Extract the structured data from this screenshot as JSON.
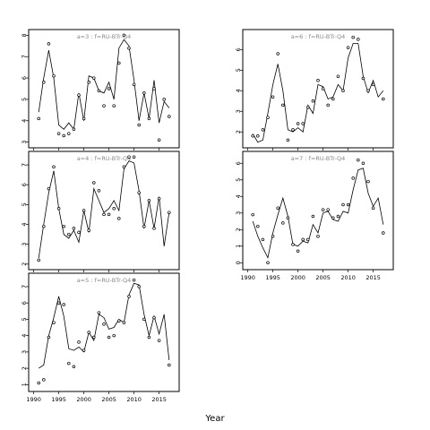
{
  "chart_data": {
    "type": "line",
    "xlabel": "Year",
    "xlim": [
      1989,
      2019
    ],
    "xticks": [
      1990,
      1995,
      2000,
      2005,
      2010,
      2015
    ],
    "panels": [
      {
        "title": "a=3 : f=RU-BTr-Q4",
        "ylim": [
          2.9,
          8.1
        ],
        "yticks": [
          3,
          4,
          5,
          6,
          7,
          8
        ],
        "fitted": {
          "x": [
            1991,
            1992,
            1993,
            1994,
            1995,
            1996,
            1997,
            1998,
            1999,
            2000,
            2001,
            2002,
            2003,
            2004,
            2005,
            2006,
            2007,
            2008,
            2009,
            2010,
            2011,
            2012,
            2013,
            2014,
            2015,
            2016,
            2017
          ],
          "y": [
            4.4,
            6.0,
            7.3,
            6.0,
            3.8,
            3.6,
            3.9,
            3.6,
            5.3,
            4.0,
            6.1,
            6.0,
            5.4,
            5.3,
            5.8,
            5.0,
            7.4,
            7.8,
            7.5,
            5.9,
            4.0,
            5.3,
            4.1,
            5.9,
            3.9,
            4.9,
            4.6
          ]
        },
        "observed": {
          "x": [
            1991,
            1992,
            1993,
            1994,
            1995,
            1996,
            1997,
            1998,
            1999,
            2000,
            2001,
            2002,
            2003,
            2004,
            2005,
            2006,
            2007,
            2008,
            2009,
            2010,
            2011,
            2012,
            2013,
            2014,
            2015,
            2016,
            2017
          ],
          "y": [
            4.1,
            5.8,
            7.6,
            6.1,
            3.4,
            3.3,
            3.4,
            3.6,
            5.2,
            4.1,
            5.8,
            6.0,
            5.4,
            4.7,
            5.5,
            4.7,
            6.7,
            8.0,
            7.4,
            5.7,
            3.8,
            5.3,
            4.1,
            5.5,
            3.1,
            5.0,
            4.2
          ]
        }
      },
      {
        "title": "a=4 : f=RU-BTr-Q4",
        "ylim": [
          1.9,
          7.5
        ],
        "yticks": [
          2,
          3,
          4,
          5,
          6,
          7
        ],
        "fitted": {
          "x": [
            1991,
            1992,
            1993,
            1994,
            1995,
            1996,
            1997,
            1998,
            1999,
            2000,
            2001,
            2002,
            2003,
            2004,
            2005,
            2006,
            2007,
            2008,
            2009,
            2010,
            2011,
            2012,
            2013,
            2014,
            2015,
            2016,
            2017
          ],
          "y": [
            2.3,
            4.0,
            5.6,
            6.7,
            4.8,
            3.5,
            3.3,
            3.7,
            3.1,
            4.7,
            3.6,
            5.8,
            5.2,
            4.6,
            4.8,
            5.2,
            4.7,
            6.8,
            7.2,
            7.1,
            5.7,
            3.8,
            5.2,
            3.8,
            5.4,
            2.9,
            4.6
          ]
        },
        "observed": {
          "x": [
            1991,
            1992,
            1993,
            1994,
            1995,
            1996,
            1997,
            1998,
            1999,
            2000,
            2001,
            2002,
            2003,
            2004,
            2005,
            2006,
            2007,
            2008,
            2009,
            2010,
            2011,
            2012,
            2013,
            2014,
            2015,
            2016,
            2017
          ],
          "y": [
            2.2,
            3.9,
            5.8,
            6.9,
            4.8,
            3.9,
            3.5,
            3.8,
            3.6,
            4.7,
            3.7,
            6.1,
            5.7,
            4.5,
            4.5,
            4.8,
            4.3,
            6.9,
            7.4,
            7.4,
            5.6,
            3.9,
            5.2,
            3.8,
            5.3,
            null,
            4.6
          ]
        }
      },
      {
        "title": "a=5 : f=RU-BTr-Q4",
        "ylim": [
          0.8,
          7.6
        ],
        "yticks": [
          1,
          2,
          3,
          4,
          5,
          6,
          7
        ],
        "fitted": {
          "x": [
            1991,
            1992,
            1993,
            1994,
            1995,
            1996,
            1997,
            1998,
            1999,
            2000,
            2001,
            2002,
            2003,
            2004,
            2005,
            2006,
            2007,
            2008,
            2009,
            2010,
            2011,
            2012,
            2013,
            2014,
            2015,
            2016,
            2017
          ],
          "y": [
            2.0,
            2.2,
            4.0,
            5.1,
            6.4,
            5.2,
            3.2,
            3.1,
            3.3,
            3.0,
            4.2,
            3.7,
            5.3,
            5.1,
            4.4,
            4.5,
            5.0,
            4.8,
            6.5,
            7.2,
            7.1,
            5.3,
            4.0,
            5.2,
            4.1,
            5.3,
            2.5
          ]
        },
        "observed": {
          "x": [
            1991,
            1992,
            1993,
            1994,
            1995,
            1996,
            1997,
            1998,
            1999,
            2000,
            2001,
            2002,
            2003,
            2004,
            2005,
            2006,
            2007,
            2008,
            2009,
            2010,
            2011,
            2012,
            2013,
            2014,
            2015,
            2016,
            2017
          ],
          "y": [
            1.1,
            1.3,
            3.9,
            4.8,
            6.0,
            5.9,
            2.3,
            2.1,
            3.6,
            3.1,
            4.2,
            3.9,
            5.4,
            4.7,
            3.9,
            4.0,
            4.9,
            4.8,
            6.4,
            7.4,
            7.0,
            5.0,
            3.9,
            5.1,
            3.7,
            null,
            2.2
          ]
        }
      },
      {
        "title": "a=6 : f=RU-BTr-Q4",
        "ylim": [
          1.4,
          6.8
        ],
        "yticks": [
          2,
          3,
          4,
          5,
          6
        ],
        "fitted": {
          "x": [
            1991,
            1992,
            1993,
            1994,
            1995,
            1996,
            1997,
            1998,
            1999,
            2000,
            2001,
            2002,
            2003,
            2004,
            2005,
            2006,
            2007,
            2008,
            2009,
            2010,
            2011,
            2012,
            2013,
            2014,
            2015,
            2016,
            2017
          ],
          "y": [
            1.9,
            1.5,
            1.6,
            2.9,
            4.3,
            5.3,
            4.0,
            2.1,
            2.0,
            2.2,
            2.0,
            3.3,
            2.9,
            4.3,
            4.2,
            3.6,
            3.7,
            4.3,
            4.0,
            5.6,
            6.3,
            6.3,
            4.7,
            3.9,
            4.5,
            3.7,
            4.0
          ]
        },
        "observed": {
          "x": [
            1991,
            1992,
            1993,
            1994,
            1995,
            1996,
            1997,
            1998,
            1999,
            2000,
            2001,
            2002,
            2003,
            2004,
            2005,
            2006,
            2007,
            2008,
            2009,
            2010,
            2011,
            2012,
            2013,
            2014,
            2015,
            2016,
            2017
          ],
          "y": [
            1.8,
            1.8,
            2.1,
            2.7,
            3.7,
            5.8,
            3.3,
            1.6,
            2.1,
            2.4,
            2.4,
            3.2,
            3.5,
            4.5,
            4.1,
            3.3,
            3.6,
            4.7,
            4.0,
            6.1,
            6.6,
            6.5,
            4.6,
            4.0,
            4.3,
            null,
            3.6
          ]
        }
      },
      {
        "title": "a=7 : f=RU-BTr-Q4",
        "ylim": [
          -0.2,
          6.5
        ],
        "yticks": [
          0,
          1,
          2,
          3,
          4,
          5,
          6
        ],
        "fitted": {
          "x": [
            1991,
            1992,
            1993,
            1994,
            1995,
            1996,
            1997,
            1998,
            1999,
            2000,
            2001,
            2002,
            2003,
            2004,
            2005,
            2006,
            2007,
            2008,
            2009,
            2010,
            2011,
            2012,
            2013,
            2014,
            2015,
            2016,
            2017
          ],
          "y": [
            2.5,
            1.6,
            0.9,
            0.3,
            1.8,
            2.9,
            3.9,
            2.8,
            1.1,
            1.0,
            1.3,
            1.2,
            2.3,
            1.8,
            3.0,
            3.1,
            2.6,
            2.5,
            3.1,
            3.0,
            4.4,
            5.6,
            5.7,
            4.2,
            3.4,
            3.9,
            2.3
          ]
        },
        "observed": {
          "x": [
            1991,
            1992,
            1993,
            1994,
            1995,
            1996,
            1997,
            1998,
            1999,
            2000,
            2001,
            2002,
            2003,
            2004,
            2005,
            2006,
            2007,
            2008,
            2009,
            2010,
            2011,
            2012,
            2013,
            2014,
            2015,
            2016,
            2017
          ],
          "y": [
            2.9,
            2.2,
            1.4,
            0.0,
            1.6,
            3.3,
            2.4,
            2.7,
            1.1,
            0.7,
            1.4,
            1.4,
            2.8,
            1.6,
            3.2,
            3.2,
            2.7,
            2.8,
            3.5,
            3.5,
            5.1,
            6.2,
            6.0,
            4.9,
            3.3,
            null,
            1.8
          ]
        }
      }
    ]
  }
}
